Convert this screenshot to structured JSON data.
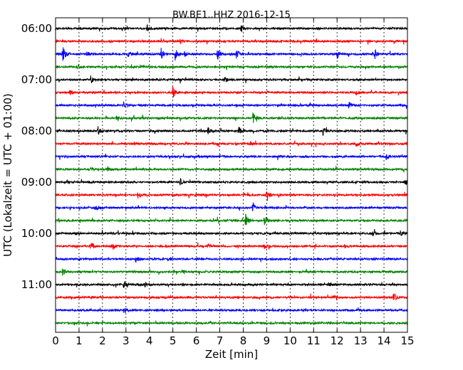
{
  "chart_data": {
    "type": "line",
    "title": "BW.BE1..HHZ 2016-12-15",
    "xlabel": "Zeit  [min]",
    "ylabel": "UTC (Lokalzeit = UTC + 01:00)",
    "xlim": [
      0,
      15
    ],
    "x_ticks": [
      "0",
      "1",
      "2",
      "3",
      "4",
      "5",
      "6",
      "7",
      "8",
      "9",
      "10",
      "11",
      "12",
      "13",
      "14",
      "15"
    ],
    "y_tick_labels": [
      "06:00",
      "07:00",
      "08:00",
      "09:00",
      "10:00",
      "11:00"
    ],
    "grid": "vertical dotted",
    "trace_interval_min": 15,
    "colors": [
      "#000000",
      "#ff0000",
      "#0000ff",
      "#008000"
    ],
    "series": [
      {
        "start": "06:00",
        "color": "#000000",
        "events": [
          [
            3.9,
            0.4
          ],
          [
            7.9,
            0.6
          ]
        ]
      },
      {
        "start": "06:15",
        "color": "#ff0000",
        "events": [
          [
            5.3,
            0.5
          ]
        ]
      },
      {
        "start": "06:30",
        "color": "#0000ff",
        "events": [
          [
            0.3,
            1.4
          ],
          [
            1.3,
            0.5
          ],
          [
            3.1,
            0.5
          ],
          [
            4.5,
            1.0
          ],
          [
            5.1,
            1.0
          ],
          [
            5.5,
            0.5
          ],
          [
            6.9,
            1.0
          ],
          [
            7.7,
            0.9
          ],
          [
            12.0,
            0.7
          ],
          [
            13.6,
            0.9
          ]
        ]
      },
      {
        "start": "06:45",
        "color": "#008000",
        "events": [
          [
            0.9,
            0.5
          ],
          [
            3.6,
            0.3
          ]
        ]
      },
      {
        "start": "07:00",
        "color": "#000000",
        "events": [
          [
            1.5,
            0.6
          ],
          [
            7.2,
            0.6
          ]
        ]
      },
      {
        "start": "07:15",
        "color": "#ff0000",
        "events": [
          [
            0.6,
            0.4
          ],
          [
            5.0,
            1.1
          ],
          [
            12.8,
            0.5
          ]
        ]
      },
      {
        "start": "07:30",
        "color": "#0000ff",
        "events": [
          [
            2.9,
            0.5
          ],
          [
            12.5,
            0.5
          ]
        ]
      },
      {
        "start": "07:45",
        "color": "#008000",
        "events": [
          [
            2.6,
            0.6
          ],
          [
            8.4,
            1.0
          ]
        ]
      },
      {
        "start": "08:00",
        "color": "#000000",
        "events": [
          [
            1.8,
            0.7
          ],
          [
            6.5,
            0.6
          ],
          [
            7.8,
            0.7
          ],
          [
            11.4,
            0.7
          ]
        ]
      },
      {
        "start": "08:15",
        "color": "#ff0000",
        "events": [
          [
            8.3,
            0.4
          ],
          [
            12.8,
            0.5
          ]
        ]
      },
      {
        "start": "08:30",
        "color": "#0000ff",
        "events": [
          [
            14.1,
            0.6
          ]
        ]
      },
      {
        "start": "08:45",
        "color": "#008000",
        "events": [
          [
            1.5,
            0.3
          ],
          [
            2.2,
            0.4
          ]
        ]
      },
      {
        "start": "09:00",
        "color": "#000000",
        "events": [
          [
            0.5,
            0.4
          ],
          [
            5.3,
            0.7
          ],
          [
            14.9,
            0.6
          ]
        ]
      },
      {
        "start": "09:15",
        "color": "#ff0000",
        "events": [
          [
            3.5,
            0.6
          ],
          [
            9.0,
            1.2
          ]
        ]
      },
      {
        "start": "09:30",
        "color": "#0000ff",
        "events": [
          [
            1.7,
            0.5
          ],
          [
            8.4,
            0.9
          ]
        ]
      },
      {
        "start": "09:45",
        "color": "#008000",
        "events": [
          [
            8.1,
            1.0
          ],
          [
            8.9,
            1.1
          ]
        ]
      },
      {
        "start": "10:00",
        "color": "#000000",
        "events": [
          [
            13.5,
            0.4
          ],
          [
            14.7,
            0.4
          ]
        ]
      },
      {
        "start": "10:15",
        "color": "#ff0000",
        "events": [
          [
            1.5,
            1.0
          ],
          [
            2.4,
            0.8
          ],
          [
            6.5,
            0.4
          ],
          [
            8.9,
            0.4
          ],
          [
            12.3,
            0.4
          ]
        ]
      },
      {
        "start": "10:30",
        "color": "#0000ff",
        "events": [
          [
            3.4,
            0.8
          ],
          [
            4.8,
            0.6
          ]
        ]
      },
      {
        "start": "10:45",
        "color": "#008000",
        "events": [
          [
            0.3,
            0.6
          ],
          [
            5.4,
            0.5
          ]
        ]
      },
      {
        "start": "11:00",
        "color": "#000000",
        "events": [
          [
            2.9,
            0.6
          ],
          [
            3.8,
            0.4
          ],
          [
            11.6,
            0.5
          ]
        ]
      },
      {
        "start": "11:15",
        "color": "#ff0000",
        "events": [
          [
            11.8,
            0.5
          ],
          [
            14.4,
            1.0
          ]
        ]
      },
      {
        "start": "11:30",
        "color": "#0000ff",
        "events": [
          [
            2.9,
            0.5
          ]
        ]
      },
      {
        "start": "11:45",
        "color": "#008000",
        "events": []
      }
    ]
  }
}
